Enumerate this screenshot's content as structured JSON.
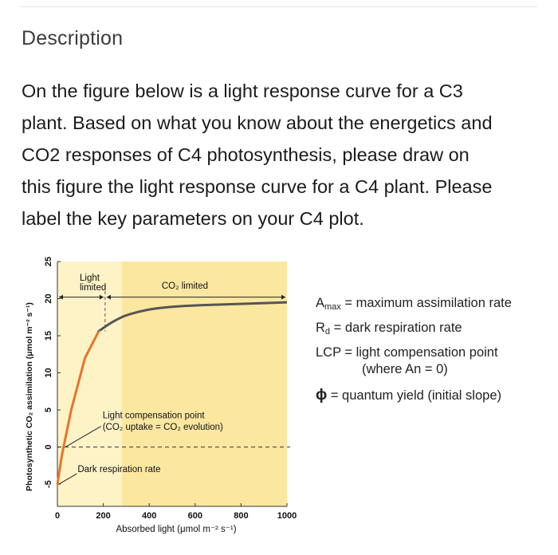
{
  "header": {
    "title": "Description"
  },
  "question": {
    "lines": [
      "On the figure below is a light response curve for a C3",
      "plant.  Based on what you know about the energetics and",
      "CO2 responses of C4 photosynthesis, please draw on",
      "this figure the light response curve for a C4 plant.  Please",
      "label the key parameters on your C4 plot."
    ]
  },
  "legend": {
    "amax_symbol": "A",
    "amax_sub": "max",
    "amax_text": " = maximum assimilation rate",
    "rd_symbol": "R",
    "rd_sub": "d",
    "rd_text": " = dark respiration rate",
    "lcp_text": "LCP = light compensation point",
    "lcp_note": "(where An = 0)",
    "phi_symbol": "ϕ",
    "phi_text": " = quantum yield (initial slope)"
  },
  "colors": {
    "yellow_light": "#fdf3c6",
    "yellow_co2": "#fce7a0",
    "curve": "#e8742a",
    "curve_dark": "#555555"
  },
  "chart_data": {
    "type": "line",
    "xlabel": "Absorbed light (μmol m⁻² s⁻¹)",
    "ylabel": "Photosynthetic CO₂ assimilation (μmol m⁻² s⁻¹)",
    "xlim": [
      0,
      1000
    ],
    "ylim": [
      -8,
      25
    ],
    "x_ticks": [
      0,
      200,
      400,
      600,
      800,
      1000
    ],
    "y_ticks": [
      25,
      20,
      15,
      10,
      5,
      0,
      -5
    ],
    "regions": [
      {
        "label": "Light\nlimited",
        "x_range": [
          0,
          280
        ]
      },
      {
        "label": "CO₂ limited",
        "x_range": [
          280,
          1000
        ]
      }
    ],
    "series": [
      {
        "x": [
          0,
          20,
          60,
          120,
          180,
          220,
          260,
          300,
          400,
          500,
          600,
          800,
          1000
        ],
        "y": [
          -5,
          -1,
          5,
          12,
          15.6,
          16.5,
          17.2,
          17.8,
          18.6,
          18.9,
          19.1,
          19.3,
          19.5
        ]
      }
    ],
    "annotations": [
      {
        "text": "Light compensation point",
        "text2": "(CO₂ uptake = CO₂ evolution)",
        "x": 35,
        "y": 0
      },
      {
        "text": "Dark respiration rate",
        "x": 0,
        "y": -5
      }
    ],
    "dashed_line_y": 0
  }
}
